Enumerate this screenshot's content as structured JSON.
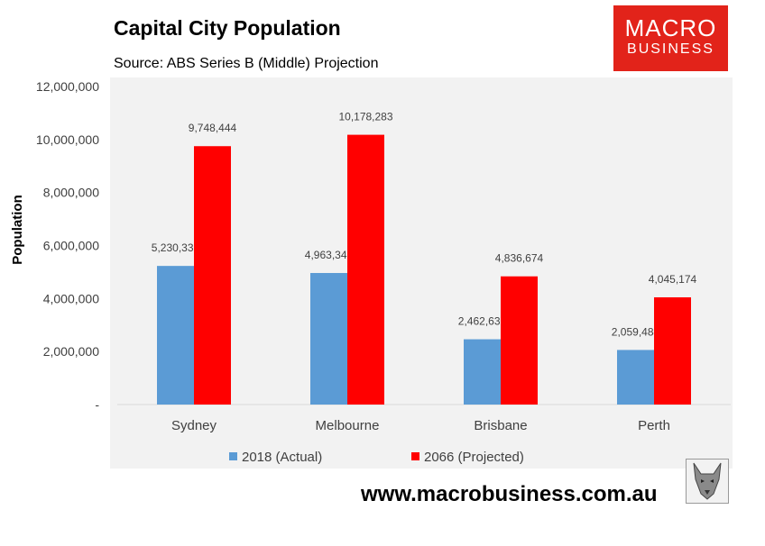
{
  "header": {
    "title": "Capital City Population",
    "subtitle": "Source: ABS Series B (Middle) Projection"
  },
  "logo": {
    "line1": "MACRO",
    "line2": "BUSINESS",
    "color": "#e2231a"
  },
  "footer": {
    "url": "www.macrobusiness.com.au",
    "emblem_icon": "wolf-head-icon"
  },
  "chart_data": {
    "type": "bar",
    "title": "Capital City Population",
    "subtitle": "Source: ABS Series B (Middle) Projection",
    "xlabel": "",
    "ylabel": "Population",
    "ylim": [
      0,
      12000000
    ],
    "yticks": [
      0,
      2000000,
      4000000,
      6000000,
      8000000,
      10000000,
      12000000
    ],
    "ytick_labels": [
      "-",
      "2,000,000",
      "4,000,000",
      "6,000,000",
      "8,000,000",
      "10,000,000",
      "12,000,000"
    ],
    "categories": [
      "Sydney",
      "Melbourne",
      "Brisbane",
      "Perth"
    ],
    "series": [
      {
        "name": "2018 (Actual)",
        "color": "#5b9bd5",
        "values": [
          5230330,
          4963349,
          2462637,
          2059484
        ],
        "labels": [
          "5,230,330",
          "4,963,349",
          "2,462,637",
          "2,059,484"
        ]
      },
      {
        "name": "2066 (Projected)",
        "color": "#ff0000",
        "values": [
          9748444,
          10178283,
          4836674,
          4045174
        ],
        "labels": [
          "9,748,444",
          "10,178,283",
          "4,836,674",
          "4,045,174"
        ]
      }
    ],
    "background": "#f2f2f2",
    "grid": false,
    "legend": "bottom"
  }
}
